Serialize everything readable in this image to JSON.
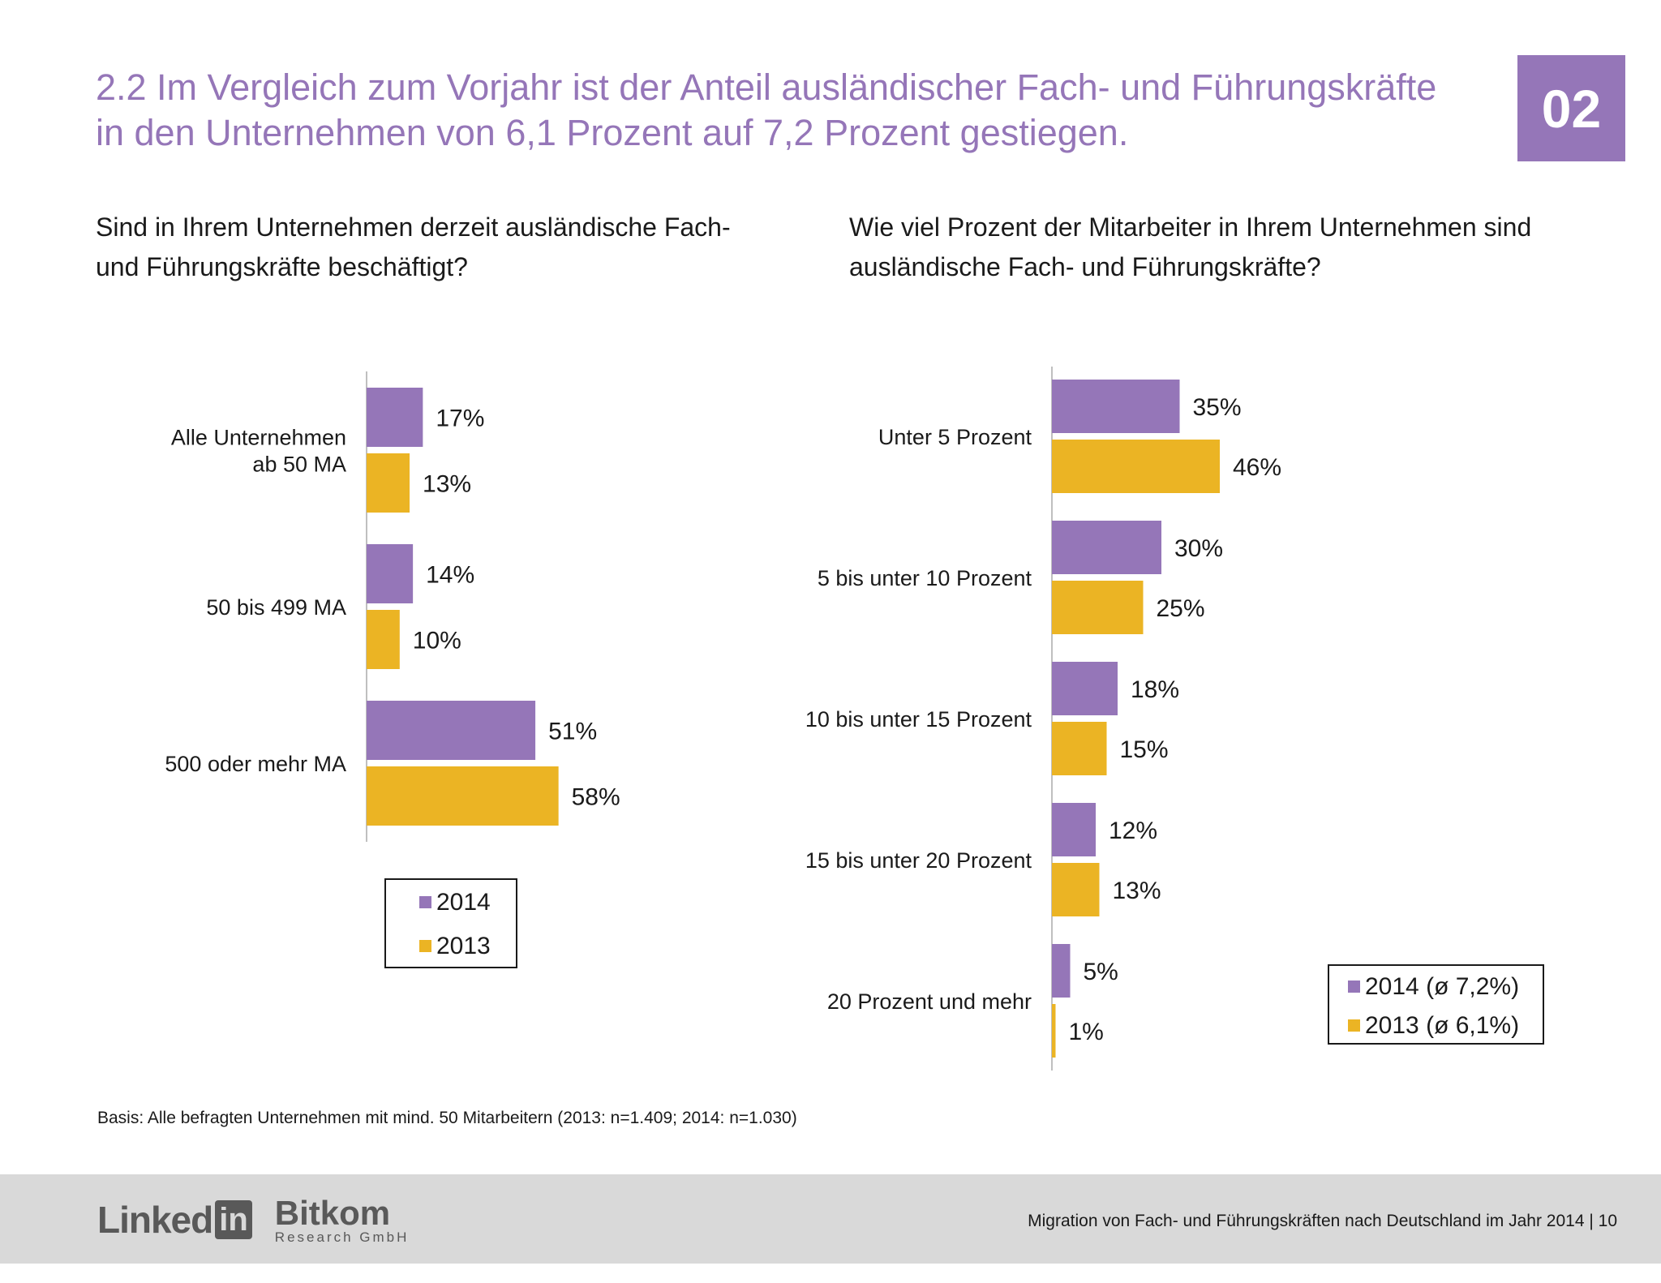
{
  "header": {
    "title": "2.2 Im Vergleich zum Vorjahr ist der Anteil ausländischer Fach- und Führungskräfte in den Unternehmen von 6,1 Prozent auf 7,2 Prozent gestiegen.",
    "badge": "02"
  },
  "colors": {
    "accent": "#9576b8",
    "series_2014": "#9576b8",
    "series_2013": "#ebb424"
  },
  "chart_data": [
    {
      "type": "bar",
      "orientation": "horizontal",
      "title": "Sind in Ihrem Unternehmen derzeit ausländische Fach- und Führungskräfte beschäftigt?",
      "categories": [
        [
          "Alle Unternehmen",
          "ab 50 MA"
        ],
        [
          "50 bis 499 MA"
        ],
        [
          "500 oder mehr MA"
        ]
      ],
      "series": [
        {
          "name": "2014",
          "values": [
            17,
            14,
            51
          ]
        },
        {
          "name": "2013",
          "values": [
            13,
            10,
            58
          ]
        }
      ],
      "unit": "%",
      "legend": "bottom"
    },
    {
      "type": "bar",
      "orientation": "horizontal",
      "title": "Wie viel Prozent der Mitarbeiter in Ihrem Unternehmen sind ausländische Fach- und Führungskräfte?",
      "categories": [
        [
          "Unter 5 Prozent"
        ],
        [
          "5 bis unter 10 Prozent"
        ],
        [
          "10 bis unter 15 Prozent"
        ],
        [
          "15 bis unter 20 Prozent"
        ],
        [
          "20 Prozent und mehr"
        ]
      ],
      "series": [
        {
          "name": "2014 (ø 7,2%)",
          "values": [
            35,
            30,
            18,
            12,
            5
          ]
        },
        {
          "name": "2013 (ø 6,1%)",
          "values": [
            46,
            25,
            15,
            13,
            1
          ]
        }
      ],
      "unit": "%",
      "legend": "bottom-right"
    }
  ],
  "footnote": "Basis: Alle befragten Unternehmen mit mind. 50 Mitarbeitern (2013: n=1.409; 2014: n=1.030)",
  "footer": {
    "logo_linkedin": "Linked",
    "logo_in": "in",
    "logo_bitkom": "Bitkom",
    "logo_bitkom_sub": "Research GmbH",
    "text": "Migration von Fach- und Führungskräften nach Deutschland im Jahr 2014  |  10"
  }
}
